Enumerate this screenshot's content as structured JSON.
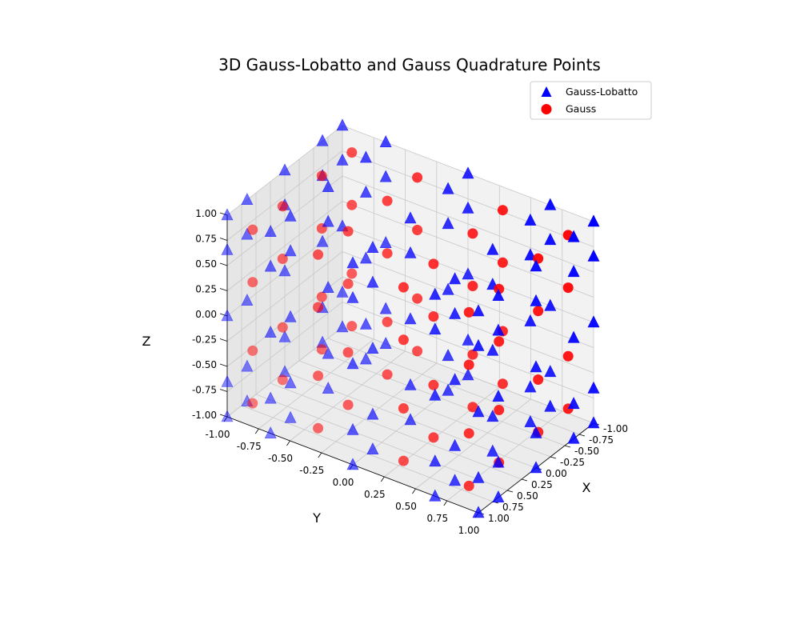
{
  "chart_data": {
    "type": "scatter3d",
    "title": "3D Gauss-Lobatto and Gauss Quadrature Points",
    "xlabel": "X",
    "ylabel": "Y",
    "zlabel": "Z",
    "xlim": [
      -1,
      1
    ],
    "ylim": [
      -1,
      1
    ],
    "zlim": [
      -1,
      1
    ],
    "x_ticks": [
      "-1.00",
      "-0.75",
      "-0.50",
      "-0.25",
      "0.00",
      "0.25",
      "0.50",
      "0.75",
      "1.00"
    ],
    "y_ticks": [
      "-1.00",
      "-0.75",
      "-0.50",
      "-0.25",
      "0.00",
      "0.25",
      "0.50",
      "0.75",
      "1.00"
    ],
    "z_ticks": [
      "-1.00",
      "-0.75",
      "-0.50",
      "-0.25",
      "0.00",
      "0.25",
      "0.50",
      "0.75",
      "1.00"
    ],
    "grid": true,
    "legend_position": "top-right",
    "series": [
      {
        "name": "Gauss-Lobatto",
        "marker": "triangle",
        "color": "#0000ff",
        "coords_1d": [
          -1.0,
          -0.6547,
          0.0,
          0.6547,
          1.0
        ]
      },
      {
        "name": "Gauss",
        "marker": "circle",
        "color": "#ff0000",
        "coords_1d": [
          -0.8611,
          -0.34,
          0.34,
          0.8611
        ]
      }
    ]
  }
}
